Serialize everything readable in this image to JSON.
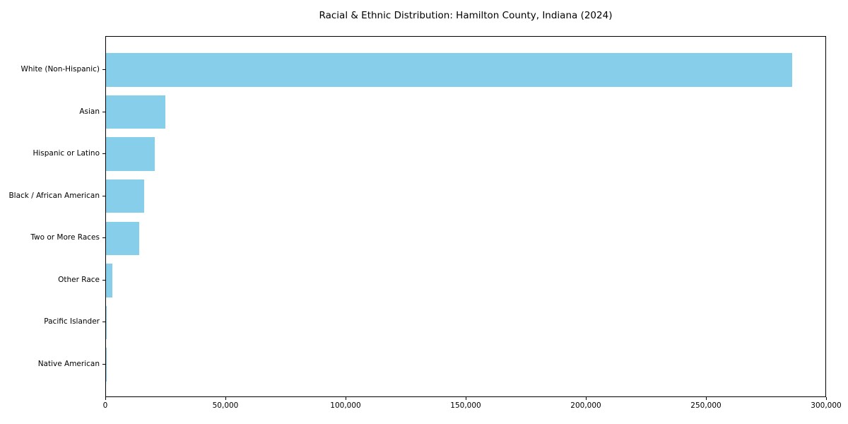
{
  "figure": {
    "title": "Racial & Ethnic Distribution: Hamilton County, Indiana (2024)"
  },
  "chart_data": {
    "type": "bar",
    "orientation": "horizontal",
    "title": "Racial & Ethnic Distribution: Hamilton County, Indiana (2024)",
    "categories": [
      "White (Non-Hispanic)",
      "Asian",
      "Hispanic or Latino",
      "Black / African American",
      "Two or More Races",
      "Other Race",
      "Pacific Islander",
      "Native American"
    ],
    "values": [
      285500,
      24600,
      20300,
      15800,
      13800,
      2500,
      150,
      120
    ],
    "xlabel": "",
    "ylabel": "",
    "xlim": [
      0,
      300000
    ],
    "x_ticks": [
      0,
      50000,
      100000,
      150000,
      200000,
      250000,
      300000
    ],
    "x_tick_labels": [
      "0",
      "50,000",
      "100,000",
      "150,000",
      "200,000",
      "250,000",
      "300,000"
    ],
    "bar_color": "#87CEEB",
    "axis_color": "#000000",
    "background_color": "#ffffff",
    "grid": false,
    "legend": "none"
  }
}
